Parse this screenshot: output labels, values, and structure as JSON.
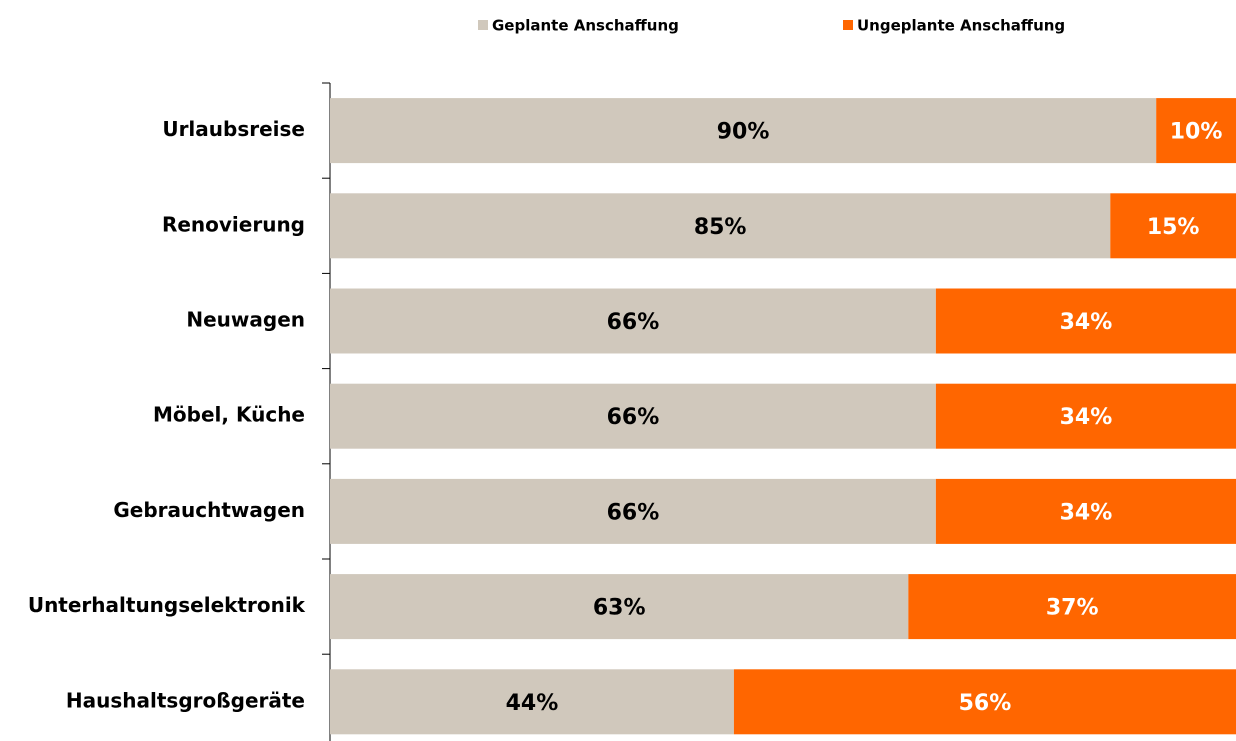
{
  "chart_data": {
    "type": "stacked-bar-horizontal",
    "categories": [
      "Urlaubsreise",
      "Renovierung",
      "Neuwagen",
      "Möbel, Küche",
      "Gebrauchtwagen",
      "Unterhaltungselektronik",
      "Haushaltsgroßgeräte"
    ],
    "series": [
      {
        "name": "Geplante Anschaffung",
        "color": "#d0c8bc",
        "values": [
          90,
          85,
          66,
          66,
          66,
          63,
          44
        ],
        "value_labels": [
          "90%",
          "85%",
          "66%",
          "66%",
          "66%",
          "63%",
          "44%"
        ]
      },
      {
        "name": "Ungeplante Anschaffung",
        "color": "#ff6600",
        "values": [
          10,
          15,
          34,
          34,
          34,
          37,
          56
        ],
        "value_labels": [
          "10%",
          "15%",
          "34%",
          "34%",
          "34%",
          "37%",
          "56%"
        ]
      }
    ],
    "legend": "top"
  }
}
